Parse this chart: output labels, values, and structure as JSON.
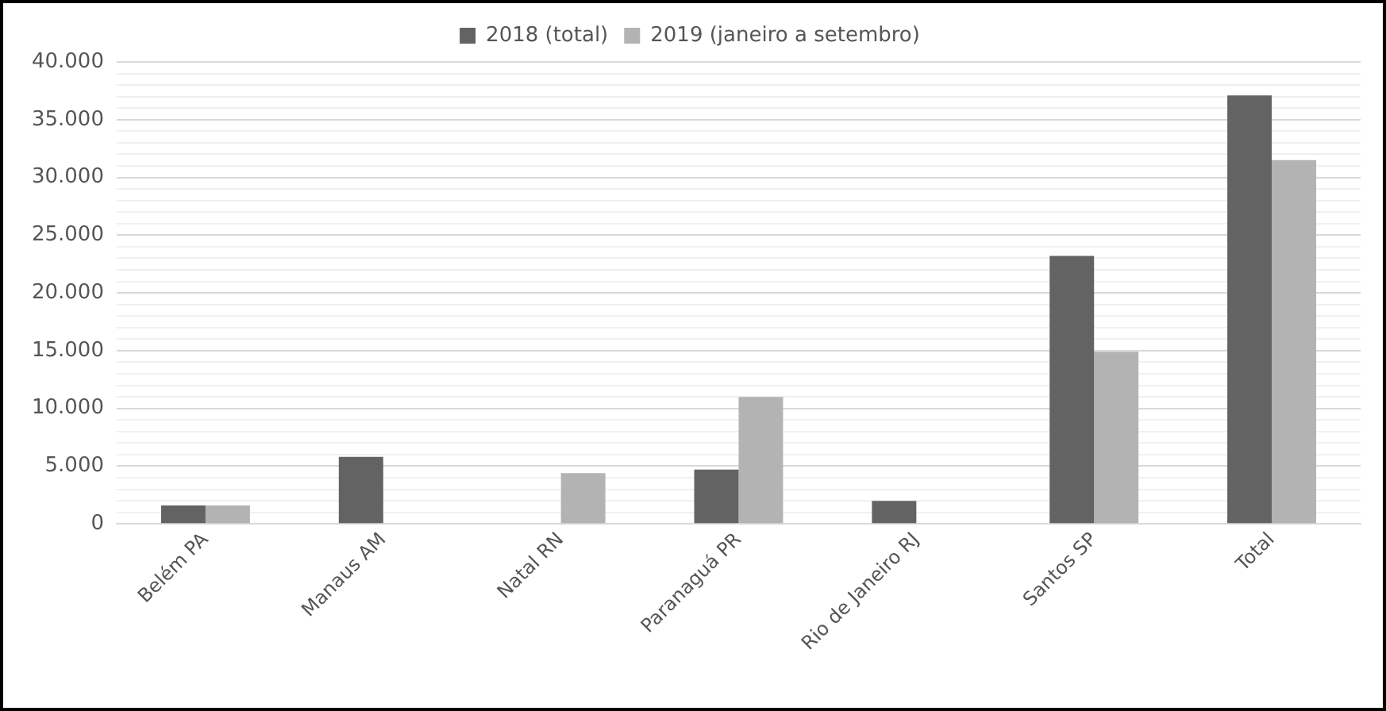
{
  "chart_data": {
    "type": "bar",
    "categories": [
      "Belém PA",
      "Manaus AM",
      "Natal RN",
      "Paranaguá PR",
      "Rio de Janeiro RJ",
      "Santos SP",
      "Total"
    ],
    "series": [
      {
        "name": "2018 (total)",
        "color": "#636363",
        "values": [
          1600,
          5800,
          null,
          4700,
          2000,
          23200,
          37100
        ]
      },
      {
        "name": "2019 (janeiro a setembro)",
        "color": "#b3b3b3",
        "values": [
          1600,
          null,
          4400,
          11000,
          null,
          14900,
          31500
        ]
      }
    ],
    "ylim": [
      0,
      40000
    ],
    "yticks": [
      0,
      {
        "value": 1000,
        "label": null
      },
      {
        "value": 2000,
        "label": null
      },
      {
        "value": 3000,
        "label": null
      },
      {
        "value": 4000,
        "label": null
      },
      {
        "value": 5000,
        "label": "5.000"
      },
      {
        "value": 6000,
        "label": null
      },
      {
        "value": 7000,
        "label": null
      },
      {
        "value": 8000,
        "label": null
      },
      {
        "value": 9000,
        "label": null
      },
      {
        "value": 10000,
        "label": "10.000"
      },
      {
        "value": 11000,
        "label": null
      },
      {
        "value": 12000,
        "label": null
      },
      {
        "value": 13000,
        "label": null
      },
      {
        "value": 14000,
        "label": null
      },
      {
        "value": 15000,
        "label": "15.000"
      },
      {
        "value": 16000,
        "label": null
      },
      {
        "value": 17000,
        "label": null
      },
      {
        "value": 18000,
        "label": null
      },
      {
        "value": 19000,
        "label": null
      },
      {
        "value": 20000,
        "label": "20.000"
      },
      {
        "value": 21000,
        "label": null
      },
      {
        "value": 22000,
        "label": null
      },
      {
        "value": 23000,
        "label": null
      },
      {
        "value": 24000,
        "label": null
      },
      {
        "value": 25000,
        "label": "25.000"
      },
      {
        "value": 26000,
        "label": null
      },
      {
        "value": 27000,
        "label": null
      },
      {
        "value": 28000,
        "label": null
      },
      {
        "value": 29000,
        "label": null
      },
      {
        "value": 30000,
        "label": "30.000"
      },
      {
        "value": 31000,
        "label": null
      },
      {
        "value": 32000,
        "label": null
      },
      {
        "value": 33000,
        "label": null
      },
      {
        "value": 34000,
        "label": null
      },
      {
        "value": 35000,
        "label": "35.000"
      },
      {
        "value": 36000,
        "label": null
      },
      {
        "value": 37000,
        "label": null
      },
      {
        "value": 38000,
        "label": null
      },
      {
        "value": 39000,
        "label": null
      },
      {
        "value": 40000,
        "label": "40.000"
      }
    ],
    "grid": "y",
    "legend": "top"
  }
}
